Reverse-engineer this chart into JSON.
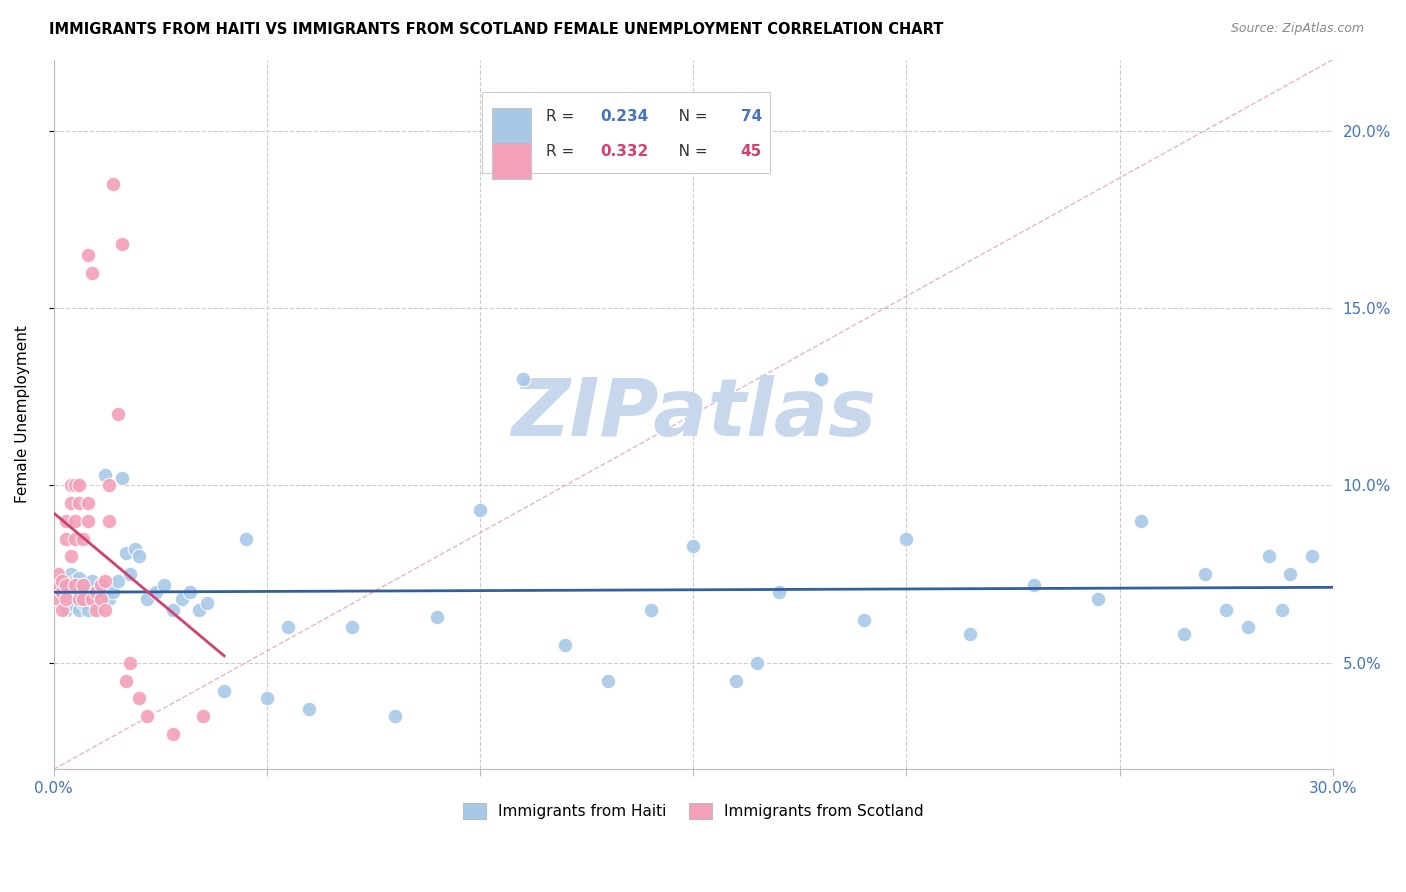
{
  "title": "IMMIGRANTS FROM HAITI VS IMMIGRANTS FROM SCOTLAND FEMALE UNEMPLOYMENT CORRELATION CHART",
  "source": "Source: ZipAtlas.com",
  "ylabel": "Female Unemployment",
  "xlim": [
    0.0,
    0.3
  ],
  "ylim": [
    0.02,
    0.22
  ],
  "x_ticks": [
    0.0,
    0.05,
    0.1,
    0.15,
    0.2,
    0.25,
    0.3
  ],
  "y_ticks": [
    0.05,
    0.1,
    0.15,
    0.2
  ],
  "y_tick_labels": [
    "5.0%",
    "10.0%",
    "15.0%",
    "20.0%"
  ],
  "haiti_color": "#A8C8E8",
  "scotland_color": "#F4A0B8",
  "haiti_R": 0.234,
  "haiti_N": 74,
  "scotland_R": 0.332,
  "scotland_N": 45,
  "haiti_line_color": "#3060A0",
  "scotland_line_color": "#D04070",
  "diagonal_color": "#E0B0C0",
  "watermark": "ZIPatlas",
  "watermark_color": "#C8D8EC",
  "haiti_x": [
    0.001,
    0.002,
    0.002,
    0.003,
    0.003,
    0.003,
    0.004,
    0.004,
    0.005,
    0.005,
    0.005,
    0.006,
    0.006,
    0.006,
    0.007,
    0.007,
    0.007,
    0.008,
    0.008,
    0.009,
    0.009,
    0.01,
    0.01,
    0.011,
    0.011,
    0.012,
    0.013,
    0.014,
    0.015,
    0.016,
    0.017,
    0.018,
    0.019,
    0.02,
    0.022,
    0.024,
    0.026,
    0.028,
    0.03,
    0.032,
    0.034,
    0.036,
    0.04,
    0.045,
    0.05,
    0.055,
    0.06,
    0.07,
    0.08,
    0.09,
    0.1,
    0.11,
    0.12,
    0.13,
    0.14,
    0.15,
    0.16,
    0.165,
    0.17,
    0.18,
    0.19,
    0.2,
    0.215,
    0.23,
    0.245,
    0.255,
    0.265,
    0.27,
    0.275,
    0.28,
    0.285,
    0.288,
    0.29,
    0.295
  ],
  "haiti_y": [
    0.07,
    0.073,
    0.068,
    0.072,
    0.065,
    0.069,
    0.071,
    0.075,
    0.068,
    0.073,
    0.066,
    0.07,
    0.074,
    0.065,
    0.072,
    0.067,
    0.069,
    0.071,
    0.065,
    0.068,
    0.073,
    0.07,
    0.066,
    0.072,
    0.068,
    0.103,
    0.068,
    0.07,
    0.073,
    0.102,
    0.081,
    0.075,
    0.082,
    0.08,
    0.068,
    0.07,
    0.072,
    0.065,
    0.068,
    0.07,
    0.065,
    0.067,
    0.042,
    0.085,
    0.04,
    0.06,
    0.037,
    0.06,
    0.035,
    0.063,
    0.093,
    0.13,
    0.055,
    0.045,
    0.065,
    0.083,
    0.045,
    0.05,
    0.07,
    0.13,
    0.062,
    0.085,
    0.058,
    0.072,
    0.068,
    0.09,
    0.058,
    0.075,
    0.065,
    0.06,
    0.08,
    0.065,
    0.075,
    0.08
  ],
  "scotland_x": [
    0.001,
    0.001,
    0.001,
    0.002,
    0.002,
    0.002,
    0.003,
    0.003,
    0.003,
    0.003,
    0.004,
    0.004,
    0.004,
    0.005,
    0.005,
    0.005,
    0.005,
    0.006,
    0.006,
    0.006,
    0.007,
    0.007,
    0.007,
    0.008,
    0.008,
    0.008,
    0.009,
    0.009,
    0.01,
    0.01,
    0.011,
    0.011,
    0.012,
    0.012,
    0.013,
    0.013,
    0.014,
    0.015,
    0.016,
    0.017,
    0.018,
    0.02,
    0.022,
    0.028,
    0.035
  ],
  "scotland_y": [
    0.072,
    0.068,
    0.075,
    0.07,
    0.065,
    0.073,
    0.068,
    0.072,
    0.085,
    0.09,
    0.08,
    0.095,
    0.1,
    0.072,
    0.085,
    0.09,
    0.1,
    0.068,
    0.095,
    0.1,
    0.068,
    0.072,
    0.085,
    0.09,
    0.095,
    0.165,
    0.068,
    0.16,
    0.065,
    0.07,
    0.068,
    0.072,
    0.065,
    0.073,
    0.1,
    0.09,
    0.185,
    0.12,
    0.168,
    0.045,
    0.05,
    0.04,
    0.035,
    0.03,
    0.035
  ]
}
